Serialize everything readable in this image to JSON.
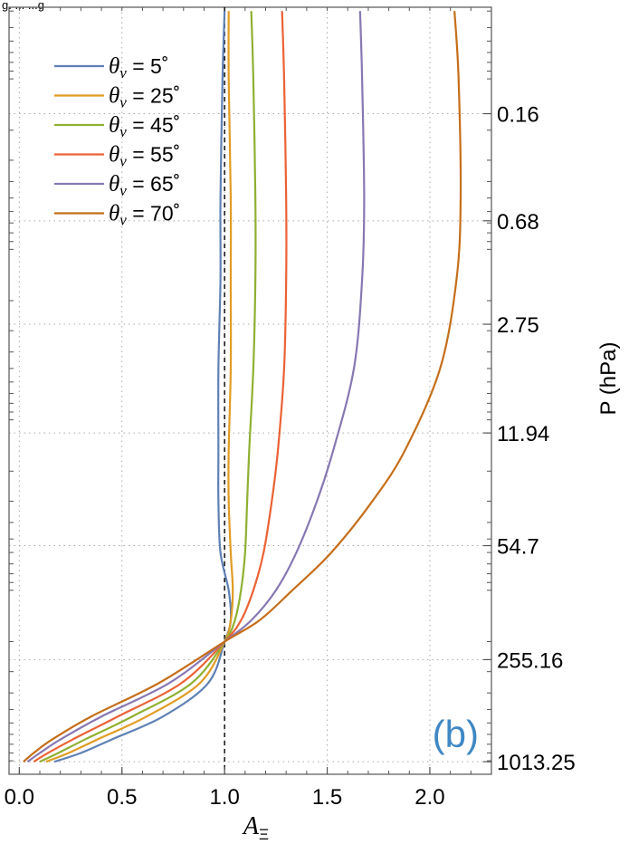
{
  "header_fragment": "g. ... ...g",
  "panel_label": "(b)",
  "panel_label_color": "#3f88c5",
  "chart_data": {
    "type": "line",
    "xlabel": "A",
    "xlabel_subscript": "Ξ",
    "ylabel": "P (hPa)",
    "x_axis": {
      "ticks": [
        0.0,
        0.5,
        1.0,
        1.5,
        2.0
      ],
      "tick_labels": [
        "0.0",
        "0.5",
        "1.0",
        "1.5",
        "2.0"
      ],
      "range": [
        -0.05,
        2.3
      ]
    },
    "y_axis": {
      "scale": "log",
      "side": "right",
      "ticks": [
        0.16,
        0.68,
        2.75,
        11.94,
        54.7,
        255.16,
        1013.25
      ],
      "tick_labels": [
        "0.16",
        "0.68",
        "2.75",
        "11.94",
        "54.7",
        "255.16",
        "1013.25"
      ],
      "range": [
        0.038,
        1200
      ]
    },
    "grid": true,
    "reference_line": {
      "x": 1.0,
      "style": "dashed",
      "color": "#000000"
    },
    "legend": {
      "position": "top-left"
    },
    "series": [
      {
        "name": "θv = 5°",
        "theta_sub": "v",
        "theta_val": " = 5˚",
        "color": "#5e81b5",
        "x": [
          1.0,
          0.99,
          0.98,
          0.98,
          0.97,
          0.97,
          0.97,
          0.98,
          1.02,
          1.03,
          1.0,
          0.92,
          0.7,
          0.45,
          0.3,
          0.17
        ],
        "y": [
          0.04,
          0.1,
          0.5,
          1.5,
          5.0,
          15.0,
          30.0,
          60.0,
          100.0,
          150.0,
          200.0,
          350.0,
          550.0,
          750.0,
          900.0,
          1013.25
        ]
      },
      {
        "name": "θv = 25°",
        "theta_sub": "v",
        "theta_val": " = 25˚",
        "color": "#e19c24",
        "x": [
          1.02,
          1.02,
          1.03,
          1.03,
          1.03,
          1.02,
          1.02,
          1.03,
          1.04,
          1.03,
          1.0,
          0.88,
          0.62,
          0.38,
          0.24,
          0.13
        ],
        "y": [
          0.04,
          0.1,
          0.5,
          1.5,
          5.0,
          15.0,
          30.0,
          60.0,
          100.0,
          150.0,
          200.0,
          350.0,
          550.0,
          750.0,
          900.0,
          1013.25
        ]
      },
      {
        "name": "θv = 45°",
        "theta_sub": "v",
        "theta_val": " = 45˚",
        "color": "#8fb032",
        "x": [
          1.13,
          1.14,
          1.15,
          1.15,
          1.14,
          1.12,
          1.11,
          1.1,
          1.08,
          1.05,
          1.0,
          0.84,
          0.55,
          0.32,
          0.19,
          0.1
        ],
        "y": [
          0.04,
          0.1,
          0.5,
          1.5,
          5.0,
          15.0,
          30.0,
          60.0,
          100.0,
          150.0,
          200.0,
          350.0,
          550.0,
          750.0,
          900.0,
          1013.25
        ]
      },
      {
        "name": "θv = 55°",
        "theta_sub": "v",
        "theta_val": " = 55˚",
        "color": "#eb6235",
        "x": [
          1.28,
          1.29,
          1.3,
          1.3,
          1.29,
          1.26,
          1.23,
          1.19,
          1.14,
          1.08,
          1.0,
          0.79,
          0.48,
          0.26,
          0.14,
          0.07
        ],
        "y": [
          0.04,
          0.1,
          0.5,
          1.5,
          5.0,
          15.0,
          30.0,
          60.0,
          100.0,
          150.0,
          200.0,
          350.0,
          550.0,
          750.0,
          900.0,
          1013.25
        ]
      },
      {
        "name": "θv = 65°",
        "theta_sub": "v",
        "theta_val": " = 65˚",
        "color": "#8778b3",
        "x": [
          1.66,
          1.67,
          1.68,
          1.67,
          1.63,
          1.53,
          1.45,
          1.35,
          1.25,
          1.13,
          1.0,
          0.73,
          0.4,
          0.2,
          0.1,
          0.04
        ],
        "y": [
          0.04,
          0.1,
          0.5,
          1.5,
          5.0,
          15.0,
          30.0,
          60.0,
          100.0,
          150.0,
          200.0,
          350.0,
          550.0,
          750.0,
          900.0,
          1013.25
        ]
      },
      {
        "name": "θv = 70°",
        "theta_sub": "v",
        "theta_val": " = 70˚",
        "color": "#c56e1a",
        "x": [
          2.12,
          2.14,
          2.15,
          2.13,
          2.05,
          1.88,
          1.72,
          1.52,
          1.33,
          1.17,
          1.0,
          0.68,
          0.35,
          0.16,
          0.07,
          0.02
        ],
        "y": [
          0.04,
          0.1,
          0.5,
          1.5,
          5.0,
          15.0,
          30.0,
          60.0,
          100.0,
          150.0,
          200.0,
          350.0,
          550.0,
          750.0,
          900.0,
          1013.25
        ]
      }
    ]
  }
}
